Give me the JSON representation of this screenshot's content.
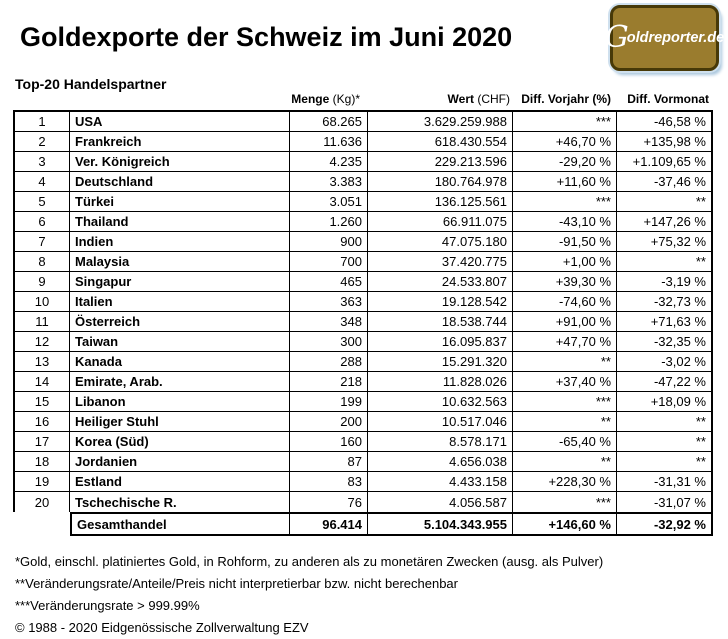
{
  "ui": {
    "title": "Goldexporte der Schweiz im Juni 2020",
    "subtitle": "Top-20 Handelspartner",
    "logo": {
      "g": "G",
      "rest": "oldreporter.de"
    },
    "table_header": {
      "menge_bold": "Menge",
      "menge_rest": " (Kg)*",
      "wert_bold": "Wert",
      "wert_rest": " (CHF)",
      "vorjahr": "Diff. Vorjahr (%)",
      "vormonat": "Diff. Vormonat"
    },
    "footnotes": [
      "*Gold, einschl. platiniertes Gold, in Rohform, zu anderen als zu monetären Zwecken (ausg. als Pulver)",
      "**Veränderungsrate/Anteile/Preis nicht interpretierbar bzw. nicht berechenbar",
      "***Veränderungsrate > 999.99%",
      "© 1988 - 2020 Eidgenössische Zollverwaltung EZV"
    ]
  },
  "colors": {
    "logo_gold": "#9a7c2e",
    "logo_border": "#473908",
    "logo_glow": "#cfe0ee",
    "logo_text": "#ffffff",
    "table_border": "#000000",
    "background": "#ffffff"
  },
  "chart_data": {
    "type": "table",
    "title": "Goldexporte der Schweiz im Juni 2020",
    "subtitle": "Top-20 Handelspartner",
    "columns": [
      "Menge (Kg)*",
      "Wert (CHF)",
      "Diff. Vorjahr (%)",
      "Diff. Vormonat"
    ],
    "rows": [
      [
        "1",
        "USA",
        "68.265",
        "3.629.259.988",
        "***",
        "-46,58 %"
      ],
      [
        "2",
        "Frankreich",
        "11.636",
        "618.430.554",
        "+46,70 %",
        "+135,98 %"
      ],
      [
        "3",
        "Ver. Königreich",
        "4.235",
        "229.213.596",
        "-29,20 %",
        "+1.109,65 %"
      ],
      [
        "4",
        "Deutschland",
        "3.383",
        "180.764.978",
        "+11,60 %",
        "-37,46 %"
      ],
      [
        "5",
        "Türkei",
        "3.051",
        "136.125.561",
        "***",
        "**"
      ],
      [
        "6",
        "Thailand",
        "1.260",
        "66.911.075",
        "-43,10 %",
        "+147,26 %"
      ],
      [
        "7",
        "Indien",
        "900",
        "47.075.180",
        "-91,50 %",
        "+75,32 %"
      ],
      [
        "8",
        "Malaysia",
        "700",
        "37.420.775",
        "+1,00 %",
        "**"
      ],
      [
        "9",
        "Singapur",
        "465",
        "24.533.807",
        "+39,30 %",
        "-3,19 %"
      ],
      [
        "10",
        "Italien",
        "363",
        "19.128.542",
        "-74,60 %",
        "-32,73 %"
      ],
      [
        "11",
        "Österreich",
        "348",
        "18.538.744",
        "+91,00 %",
        "+71,63 %"
      ],
      [
        "12",
        "Taiwan",
        "300",
        "16.095.837",
        "+47,70 %",
        "-32,35 %"
      ],
      [
        "13",
        "Kanada",
        "288",
        "15.291.320",
        "**",
        "-3,02 %"
      ],
      [
        "14",
        "Emirate, Arab.",
        "218",
        "11.828.026",
        "+37,40 %",
        "-47,22 %"
      ],
      [
        "15",
        "Libanon",
        "199",
        "10.632.563",
        "***",
        "+18,09 %"
      ],
      [
        "16",
        "Heiliger Stuhl",
        "200",
        "10.517.046",
        "**",
        "**"
      ],
      [
        "17",
        "Korea (Süd)",
        "160",
        "8.578.171",
        "-65,40 %",
        "**"
      ],
      [
        "18",
        "Jordanien",
        "87",
        "4.656.038",
        "**",
        "**"
      ],
      [
        "19",
        "Estland",
        "83",
        "4.433.158",
        "+228,30 %",
        "-31,31 %"
      ],
      [
        "20",
        "Tschechische R.",
        "76",
        "4.056.587",
        "***",
        "-31,07 %"
      ]
    ],
    "total": [
      "Gesamthandel",
      "96.414",
      "5.104.343.955",
      "+146,60 %",
      "-32,92 %"
    ]
  }
}
